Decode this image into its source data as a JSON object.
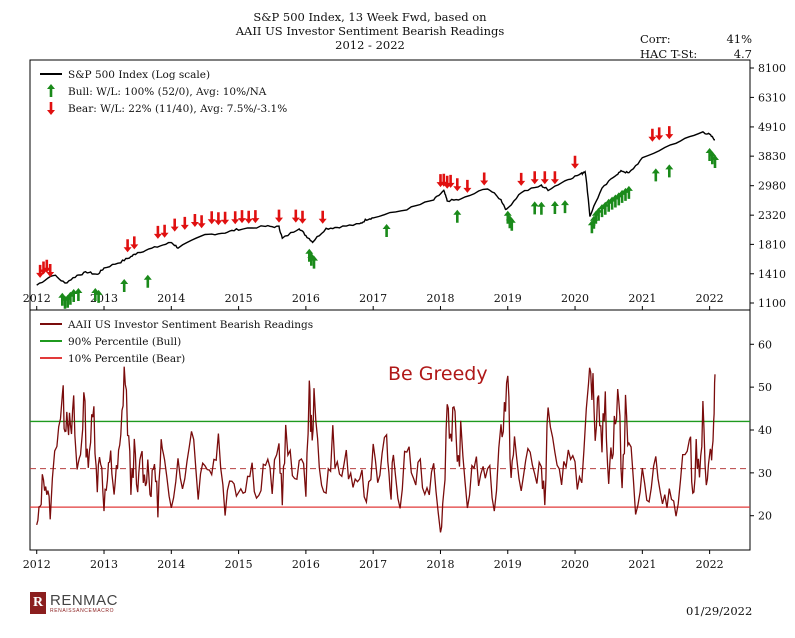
{
  "title": {
    "line1": "S&P 500 Index, 13 Week Fwd, based on",
    "line2": "AAII US Investor Sentiment Bearish Readings",
    "line3": "2012 - 2022"
  },
  "stats": {
    "corr_label": "Corr:",
    "corr_value": "41%",
    "hac_label": "HAC T-St:",
    "hac_value": "4.7"
  },
  "annotation": "Be Greedy",
  "brand": {
    "name": "RENMAC",
    "tagline": "RENAISSANCEMACRO"
  },
  "date": "01/29/2022",
  "colors": {
    "index": "#000000",
    "bull": "#1a8a1a",
    "bear": "#e01010",
    "sentiment": "#7a0c0c",
    "bull_line": "#1f9a1f",
    "bear_line": "#e23a3a",
    "median_line": "#b84040",
    "annotation": "#b01818"
  },
  "chart_data": [
    {
      "type": "line",
      "id": "top",
      "y_scale": "log",
      "ylim": [
        1100,
        8100
      ],
      "xlim": [
        2011.9,
        2022.6
      ],
      "y_ticks": [
        1100,
        1410,
        1810,
        2320,
        2980,
        3830,
        4910,
        6310,
        8100
      ],
      "x_ticks": [
        2012,
        2013,
        2014,
        2015,
        2016,
        2017,
        2018,
        2019,
        2020,
        2021,
        2022
      ],
      "legend": [
        {
          "key": "index",
          "label": "S&P 500 Index (Log scale)"
        },
        {
          "key": "bull",
          "label": "Bull:  W/L: 100% (52/0), Avg: 10%/NA"
        },
        {
          "key": "bear",
          "label": "Bear:  W/L: 22% (11/40), Avg: 7.5%/-3.1%"
        }
      ],
      "series": [
        {
          "name": "S&P 500 Index",
          "x": [
            2012.0,
            2012.25,
            2012.42,
            2012.6,
            2012.75,
            2012.9,
            2013.0,
            2013.25,
            2013.4,
            2013.5,
            2013.75,
            2014.0,
            2014.1,
            2014.5,
            2014.8,
            2015.0,
            2015.4,
            2015.6,
            2015.65,
            2015.9,
            2016.0,
            2016.1,
            2016.3,
            2016.5,
            2016.8,
            2016.9,
            2017.0,
            2017.5,
            2017.9,
            2018.05,
            2018.1,
            2018.3,
            2018.7,
            2018.9,
            2018.98,
            2019.2,
            2019.5,
            2019.6,
            2019.9,
            2020.1,
            2020.15,
            2020.22,
            2020.4,
            2020.6,
            2020.7,
            2020.8,
            2021.0,
            2021.5,
            2021.9,
            2022.0,
            2022.08
          ],
          "values": [
            1280,
            1400,
            1300,
            1390,
            1430,
            1400,
            1480,
            1560,
            1630,
            1690,
            1760,
            1840,
            1760,
            1960,
            2000,
            2060,
            2110,
            2100,
            1900,
            2080,
            1950,
            1850,
            2070,
            2100,
            2150,
            2240,
            2270,
            2440,
            2640,
            2850,
            2620,
            2650,
            2920,
            2640,
            2420,
            2820,
            2980,
            2880,
            3150,
            3300,
            3380,
            2300,
            2900,
            3260,
            3380,
            3310,
            3750,
            4300,
            4700,
            4600,
            4400
          ]
        },
        {
          "name": "Bull",
          "x": [
            2012.38,
            2012.42,
            2012.46,
            2012.5,
            2012.55,
            2012.62,
            2012.87,
            2012.92,
            2013.3,
            2013.65,
            2016.05,
            2016.08,
            2016.12,
            2017.2,
            2018.25,
            2019.0,
            2019.03,
            2019.06,
            2019.4,
            2019.5,
            2019.7,
            2019.85,
            2020.25,
            2020.28,
            2020.31,
            2020.35,
            2020.4,
            2020.45,
            2020.5,
            2020.55,
            2020.6,
            2020.65,
            2020.7,
            2020.75,
            2020.8,
            2021.2,
            2021.4,
            2022.0,
            2022.04,
            2022.08
          ],
          "values": [
            1210,
            1180,
            1190,
            1220,
            1250,
            1260,
            1260,
            1240,
            1360,
            1410,
            1760,
            1700,
            1660,
            2170,
            2450,
            2430,
            2340,
            2290,
            2630,
            2620,
            2640,
            2660,
            2240,
            2330,
            2430,
            2490,
            2570,
            2620,
            2690,
            2740,
            2790,
            2840,
            2900,
            2950,
            3000,
            3480,
            3600,
            4140,
            4030,
            3900
          ]
        },
        {
          "name": "Bear",
          "x": [
            2012.05,
            2012.1,
            2012.15,
            2012.2,
            2013.35,
            2013.45,
            2013.8,
            2013.9,
            2014.05,
            2014.2,
            2014.35,
            2014.45,
            2014.6,
            2014.7,
            2014.8,
            2014.95,
            2015.05,
            2015.15,
            2015.25,
            2015.6,
            2015.85,
            2015.95,
            2016.25,
            2018.0,
            2018.05,
            2018.1,
            2018.15,
            2018.25,
            2018.4,
            2018.65,
            2019.2,
            2019.4,
            2019.55,
            2019.7,
            2020.0,
            2021.15,
            2021.25,
            2021.4
          ],
          "values": [
            1350,
            1390,
            1410,
            1360,
            1680,
            1720,
            1880,
            1900,
            2000,
            2030,
            2080,
            2060,
            2130,
            2110,
            2120,
            2130,
            2150,
            2140,
            2150,
            2160,
            2160,
            2140,
            2140,
            2920,
            2930,
            2880,
            2900,
            2820,
            2780,
            2960,
            2950,
            2990,
            2990,
            2990,
            3410,
            4290,
            4340,
            4390
          ]
        }
      ]
    },
    {
      "type": "line",
      "id": "bottom",
      "ylim": [
        12,
        68
      ],
      "xlim": [
        2011.9,
        2022.6
      ],
      "y_ticks": [
        20,
        30,
        40,
        50,
        60
      ],
      "x_ticks": [
        2012,
        2013,
        2014,
        2015,
        2016,
        2017,
        2018,
        2019,
        2020,
        2021,
        2022
      ],
      "legend": [
        {
          "key": "sentiment",
          "label": "AAII US Investor Sentiment Bearish Readings"
        },
        {
          "key": "bull_line",
          "label": "90% Percentile (Bull)"
        },
        {
          "key": "bear_line",
          "label": "10% Percentile (Bear)"
        }
      ],
      "reference_lines": {
        "bull_90pct": 42,
        "bear_10pct": 22,
        "median": 31
      },
      "series": [
        {
          "name": "AAII US Investor Sentiment Bearish Readings",
          "x": [
            2012.0,
            2012.05,
            2012.1,
            2012.15,
            2012.2,
            2012.3,
            2012.38,
            2012.42,
            2012.46,
            2012.5,
            2012.55,
            2012.6,
            2012.65,
            2012.7,
            2012.75,
            2012.8,
            2012.85,
            2012.9,
            2012.95,
            2013.0,
            2013.05,
            2013.1,
            2013.15,
            2013.2,
            2013.25,
            2013.3,
            2013.35,
            2013.4,
            2013.45,
            2013.5,
            2013.55,
            2013.6,
            2013.65,
            2013.7,
            2013.75,
            2013.8,
            2013.85,
            2013.9,
            2014.0,
            2014.1,
            2014.2,
            2014.3,
            2014.4,
            2014.5,
            2014.6,
            2014.7,
            2014.8,
            2014.9,
            2015.0,
            2015.1,
            2015.2,
            2015.3,
            2015.4,
            2015.5,
            2015.6,
            2015.65,
            2015.7,
            2015.8,
            2015.9,
            2016.0,
            2016.05,
            2016.08,
            2016.12,
            2016.2,
            2016.3,
            2016.4,
            2016.5,
            2016.6,
            2016.7,
            2016.8,
            2016.9,
            2017.0,
            2017.1,
            2017.2,
            2017.25,
            2017.3,
            2017.4,
            2017.5,
            2017.6,
            2017.7,
            2017.8,
            2017.9,
            2018.0,
            2018.05,
            2018.1,
            2018.15,
            2018.2,
            2018.25,
            2018.3,
            2018.4,
            2018.5,
            2018.6,
            2018.7,
            2018.8,
            2018.9,
            2018.95,
            2019.0,
            2019.05,
            2019.1,
            2019.2,
            2019.3,
            2019.4,
            2019.5,
            2019.55,
            2019.6,
            2019.7,
            2019.8,
            2019.9,
            2020.0,
            2020.1,
            2020.2,
            2020.25,
            2020.3,
            2020.35,
            2020.4,
            2020.45,
            2020.5,
            2020.55,
            2020.6,
            2020.65,
            2020.7,
            2020.75,
            2020.8,
            2020.9,
            2021.0,
            2021.1,
            2021.2,
            2021.3,
            2021.4,
            2021.5,
            2021.6,
            2021.7,
            2021.75,
            2021.8,
            2021.85,
            2021.9,
            2021.95,
            2022.0,
            2022.03,
            2022.06,
            2022.08
          ],
          "values": [
            17,
            22,
            30,
            26,
            21,
            40,
            47,
            43,
            45,
            38,
            44,
            30,
            35,
            47,
            33,
            38,
            44,
            28,
            35,
            23,
            28,
            33,
            26,
            31,
            37,
            55,
            42,
            27,
            35,
            24,
            36,
            28,
            32,
            25,
            33,
            22,
            36,
            30,
            24,
            33,
            27,
            43,
            26,
            35,
            30,
            38,
            22,
            30,
            26,
            28,
            31,
            24,
            33,
            27,
            36,
            25,
            38,
            29,
            33,
            27,
            49,
            40,
            45,
            32,
            25,
            38,
            28,
            34,
            24,
            31,
            23,
            36,
            28,
            40,
            24,
            32,
            22,
            37,
            28,
            30,
            25,
            33,
            17,
            24,
            47,
            39,
            45,
            30,
            38,
            23,
            34,
            27,
            33,
            22,
            40,
            45,
            50,
            30,
            36,
            25,
            38,
            27,
            33,
            22,
            47,
            32,
            26,
            38,
            31,
            26,
            48,
            52,
            41,
            50,
            38,
            45,
            30,
            36,
            42,
            48,
            27,
            44,
            38,
            22,
            30,
            24,
            33,
            21,
            26,
            22,
            32,
            40,
            24,
            36,
            28,
            43,
            25,
            38,
            31,
            42,
            53
          ]
        }
      ]
    }
  ]
}
